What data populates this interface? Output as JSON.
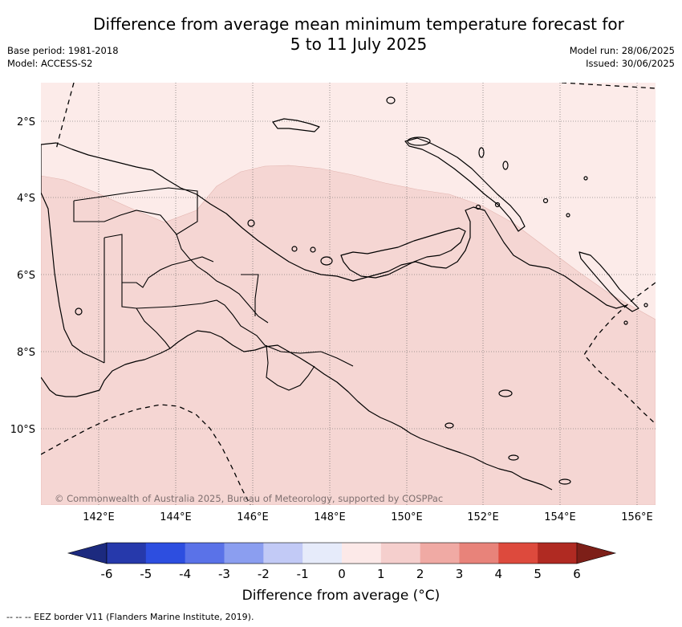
{
  "title_line1": "Difference from average mean minimum temperature forecast for",
  "title_line2": "5 to 11 July 2025",
  "base_period": "Base period: 1981-2018",
  "model": "Model: ACCESS-S2",
  "model_run": "Model run: 28/06/2025",
  "issued": "Issued: 30/06/2025",
  "copyright": "© Commonwealth of Australia 2025, Bureau of Meteorology, supported by COSPPac",
  "lat_labels": [
    "2°S",
    "4°S",
    "6°S",
    "8°S",
    "10°S"
  ],
  "lon_labels": [
    "142°E",
    "144°E",
    "146°E",
    "148°E",
    "150°E",
    "152°E",
    "154°E",
    "156°E"
  ],
  "colorbar": {
    "title": "Difference from average (°C)",
    "ticks": [
      "-6",
      "-5",
      "-4",
      "-3",
      "-2",
      "-1",
      "0",
      "1",
      "2",
      "3",
      "4",
      "5",
      "6"
    ],
    "colors": [
      "#2639ab",
      "#2d4ee0",
      "#5a72e8",
      "#8b9ef0",
      "#c2caf6",
      "#e6ebfa",
      "#fce9e8",
      "#f5cfcd",
      "#f0aaa4",
      "#e8837a",
      "#dd4a3d",
      "#b02a22"
    ],
    "under_color": "#1c2a7f",
    "over_color": "#7d1f18"
  },
  "footer": "-- -- -- EEZ border V11 (Flanders Marine Institute, 2019).",
  "map_colors": {
    "light": "#fcebe9",
    "medium": "#f5d6d3"
  }
}
